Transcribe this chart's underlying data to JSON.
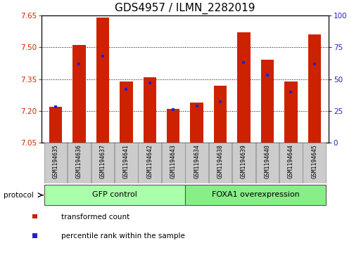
{
  "title": "GDS4957 / ILMN_2282019",
  "samples": [
    "GSM1194635",
    "GSM1194636",
    "GSM1194637",
    "GSM1194641",
    "GSM1194642",
    "GSM1194643",
    "GSM1194634",
    "GSM1194638",
    "GSM1194639",
    "GSM1194640",
    "GSM1194644",
    "GSM1194645"
  ],
  "transformed_count": [
    7.22,
    7.51,
    7.64,
    7.34,
    7.36,
    7.21,
    7.24,
    7.32,
    7.57,
    7.44,
    7.34,
    7.56
  ],
  "percentile_rank": [
    28,
    62,
    68,
    42,
    47,
    26,
    29,
    32,
    63,
    53,
    40,
    62
  ],
  "ylim_left": [
    7.05,
    7.65
  ],
  "yticks_left": [
    7.05,
    7.2,
    7.35,
    7.5,
    7.65
  ],
  "ylim_right": [
    0,
    100
  ],
  "yticks_right": [
    0,
    25,
    50,
    75,
    100
  ],
  "bar_color": "#cc2200",
  "dot_color": "#2222cc",
  "groups": [
    {
      "label": "GFP control",
      "start": 0,
      "end": 5,
      "color": "#aaffaa"
    },
    {
      "label": "FOXA1 overexpression",
      "start": 6,
      "end": 11,
      "color": "#88ee88"
    }
  ],
  "legend_labels": [
    "transformed count",
    "percentile rank within the sample"
  ],
  "legend_colors": [
    "#cc2200",
    "#2222cc"
  ],
  "protocol_label": "protocol",
  "left_tick_color": "#cc2200",
  "right_tick_color": "#2222cc",
  "title_fontsize": 11,
  "tick_fontsize": 7.5,
  "bar_width": 0.55,
  "dot_size": 12
}
